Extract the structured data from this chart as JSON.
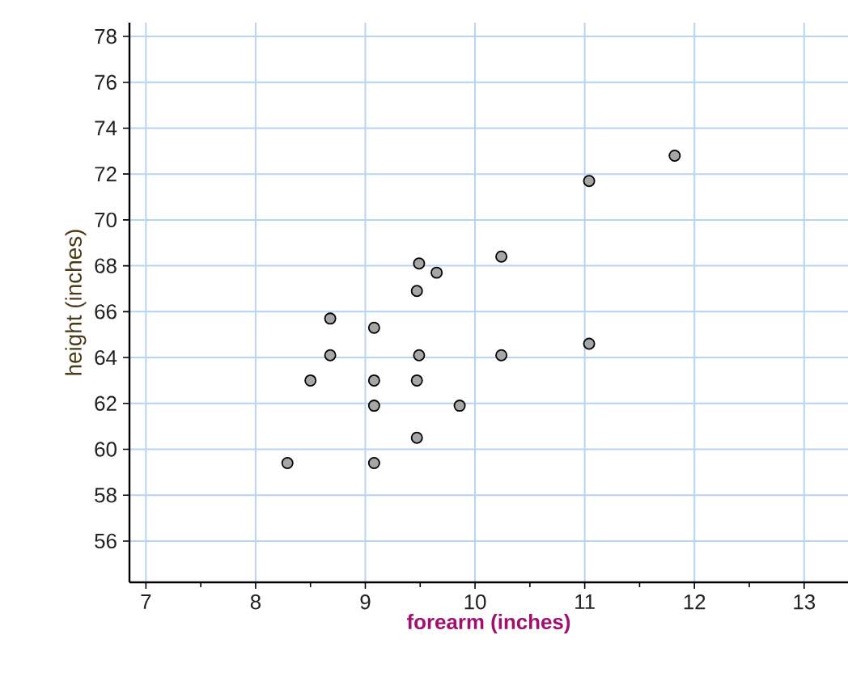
{
  "chart_data": {
    "type": "scatter",
    "xlabel": "forearm  (inches)",
    "ylabel": "height (inches)",
    "x": [
      11.82,
      11.04,
      10.24,
      9.49,
      9.65,
      9.47,
      8.68,
      9.08,
      8.68,
      9.49,
      10.24,
      11.04,
      8.5,
      9.08,
      9.47,
      9.08,
      9.86,
      9.47,
      8.29,
      9.08
    ],
    "values": [
      72.8,
      71.7,
      68.4,
      68.1,
      67.7,
      66.9,
      65.7,
      65.3,
      64.1,
      64.1,
      64.1,
      64.6,
      63.0,
      63.0,
      63.0,
      61.9,
      61.9,
      60.5,
      59.4,
      59.4
    ],
    "color": "#a6a6a6",
    "marker": "circle",
    "grid": true,
    "xlim": [
      6.85,
      13.4
    ],
    "ylim": [
      54.2,
      78.6
    ],
    "xticks": [
      7,
      {
        "value": 7.5,
        "label": null
      },
      8,
      {
        "value": 8.5,
        "label": null
      },
      9,
      {
        "value": 9.5,
        "label": null
      },
      10,
      {
        "value": 10.5,
        "label": null
      },
      11,
      {
        "value": 11.5,
        "label": null
      },
      12,
      {
        "value": 12.5,
        "label": null
      },
      13
    ],
    "yticks": [
      56,
      58,
      60,
      62,
      64,
      66,
      68,
      70,
      72,
      74,
      76,
      78
    ]
  }
}
